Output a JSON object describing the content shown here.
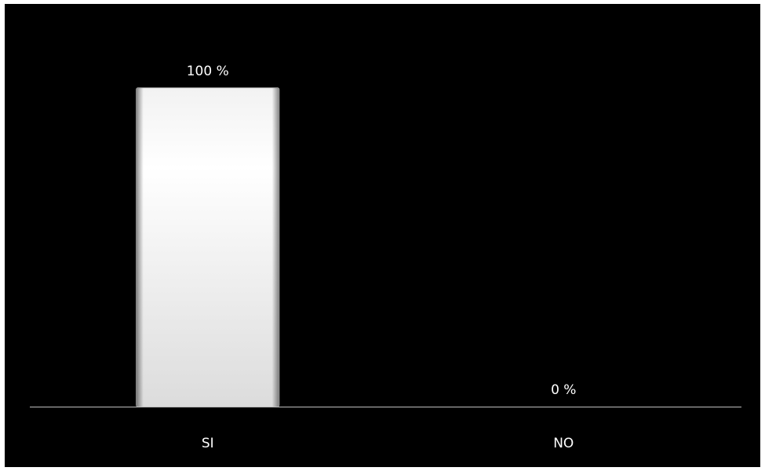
{
  "chart_data": {
    "type": "bar",
    "categories": [
      "SI",
      "NO"
    ],
    "values": [
      100,
      0
    ],
    "data_labels": [
      "100 %",
      "0 %"
    ],
    "ylim": [
      0,
      100
    ],
    "grid": false,
    "legend": "none",
    "colors": {
      "background": "#000000",
      "bar_fill": "#ffffff",
      "bar_shade": "#d0d0d0",
      "text": "#ffffff",
      "axis": "#bfbfbf"
    }
  }
}
